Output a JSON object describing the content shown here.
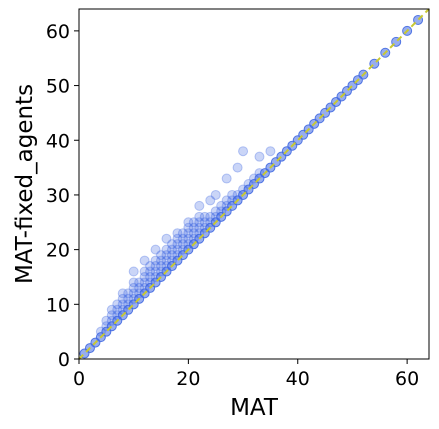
{
  "chart_data": {
    "type": "scatter",
    "title": "",
    "xlabel": "MAT",
    "ylabel": "MAT-fixed_agents",
    "xlim": [
      0,
      64
    ],
    "ylim": [
      0,
      64
    ],
    "xticks": [
      0,
      20,
      40,
      60
    ],
    "yticks": [
      0,
      10,
      20,
      30,
      40,
      50,
      60
    ],
    "grid": false,
    "legend": "none",
    "marker": "hollow-circle",
    "point_color": "#4169e1",
    "reference_line": {
      "style": "dashed",
      "color": "#c8c832",
      "from": [
        0,
        0
      ],
      "to": [
        64,
        64
      ]
    },
    "series": [
      {
        "values": [
          [
            1,
            1
          ],
          [
            2,
            2
          ],
          [
            3,
            3
          ],
          [
            4,
            4
          ],
          [
            5,
            5
          ],
          [
            6,
            6
          ],
          [
            7,
            7
          ],
          [
            8,
            8
          ],
          [
            9,
            9
          ],
          [
            10,
            10
          ],
          [
            11,
            11
          ],
          [
            12,
            12
          ],
          [
            13,
            13
          ],
          [
            14,
            14
          ],
          [
            15,
            15
          ],
          [
            16,
            16
          ],
          [
            17,
            17
          ],
          [
            18,
            18
          ],
          [
            19,
            19
          ],
          [
            20,
            20
          ],
          [
            21,
            21
          ],
          [
            22,
            22
          ],
          [
            23,
            23
          ],
          [
            24,
            24
          ],
          [
            25,
            25
          ],
          [
            26,
            26
          ],
          [
            27,
            27
          ],
          [
            28,
            28
          ],
          [
            29,
            29
          ],
          [
            30,
            30
          ],
          [
            31,
            31
          ],
          [
            32,
            32
          ],
          [
            33,
            33
          ],
          [
            34,
            34
          ],
          [
            35,
            35
          ],
          [
            36,
            36
          ],
          [
            37,
            37
          ],
          [
            38,
            38
          ],
          [
            39,
            39
          ],
          [
            40,
            40
          ],
          [
            41,
            41
          ],
          [
            42,
            42
          ],
          [
            43,
            43
          ],
          [
            44,
            44
          ],
          [
            45,
            45
          ],
          [
            46,
            46
          ],
          [
            47,
            47
          ],
          [
            48,
            48
          ],
          [
            49,
            49
          ],
          [
            50,
            50
          ],
          [
            51,
            51
          ],
          [
            52,
            52
          ],
          [
            54,
            54
          ],
          [
            56,
            56
          ],
          [
            58,
            58
          ],
          [
            60,
            60
          ],
          [
            62,
            62
          ],
          [
            4,
            5
          ],
          [
            5,
            6
          ],
          [
            6,
            7
          ],
          [
            7,
            8
          ],
          [
            8,
            9
          ],
          [
            9,
            10
          ],
          [
            10,
            11
          ],
          [
            11,
            12
          ],
          [
            12,
            13
          ],
          [
            13,
            14
          ],
          [
            14,
            15
          ],
          [
            15,
            16
          ],
          [
            16,
            17
          ],
          [
            17,
            18
          ],
          [
            18,
            19
          ],
          [
            19,
            20
          ],
          [
            20,
            21
          ],
          [
            21,
            22
          ],
          [
            22,
            23
          ],
          [
            23,
            24
          ],
          [
            24,
            25
          ],
          [
            25,
            26
          ],
          [
            26,
            27
          ],
          [
            27,
            28
          ],
          [
            28,
            29
          ],
          [
            29,
            30
          ],
          [
            30,
            31
          ],
          [
            31,
            32
          ],
          [
            32,
            33
          ],
          [
            33,
            34
          ],
          [
            5,
            7
          ],
          [
            6,
            8
          ],
          [
            7,
            9
          ],
          [
            8,
            10
          ],
          [
            9,
            11
          ],
          [
            10,
            12
          ],
          [
            11,
            13
          ],
          [
            12,
            14
          ],
          [
            13,
            15
          ],
          [
            14,
            16
          ],
          [
            15,
            17
          ],
          [
            16,
            18
          ],
          [
            17,
            19
          ],
          [
            18,
            20
          ],
          [
            19,
            21
          ],
          [
            20,
            22
          ],
          [
            21,
            23
          ],
          [
            22,
            24
          ],
          [
            23,
            25
          ],
          [
            24,
            26
          ],
          [
            25,
            27
          ],
          [
            26,
            28
          ],
          [
            27,
            29
          ],
          [
            28,
            30
          ],
          [
            6,
            9
          ],
          [
            7,
            10
          ],
          [
            8,
            11
          ],
          [
            9,
            12
          ],
          [
            10,
            13
          ],
          [
            11,
            14
          ],
          [
            12,
            15
          ],
          [
            13,
            16
          ],
          [
            14,
            17
          ],
          [
            15,
            18
          ],
          [
            16,
            19
          ],
          [
            17,
            20
          ],
          [
            18,
            21
          ],
          [
            19,
            22
          ],
          [
            20,
            23
          ],
          [
            21,
            24
          ],
          [
            22,
            25
          ],
          [
            23,
            26
          ],
          [
            8,
            12
          ],
          [
            10,
            14
          ],
          [
            12,
            16
          ],
          [
            13,
            17
          ],
          [
            14,
            18
          ],
          [
            15,
            19
          ],
          [
            16,
            20
          ],
          [
            17,
            21
          ],
          [
            18,
            22
          ],
          [
            19,
            23
          ],
          [
            20,
            24
          ],
          [
            21,
            25
          ],
          [
            22,
            26
          ],
          [
            10,
            16
          ],
          [
            12,
            18
          ],
          [
            14,
            20
          ],
          [
            16,
            22
          ],
          [
            18,
            23
          ],
          [
            20,
            25
          ],
          [
            22,
            28
          ],
          [
            24,
            29
          ],
          [
            25,
            30
          ],
          [
            27,
            33
          ],
          [
            29,
            35
          ],
          [
            30,
            38
          ],
          [
            33,
            37
          ],
          [
            35,
            38
          ]
        ]
      }
    ]
  }
}
